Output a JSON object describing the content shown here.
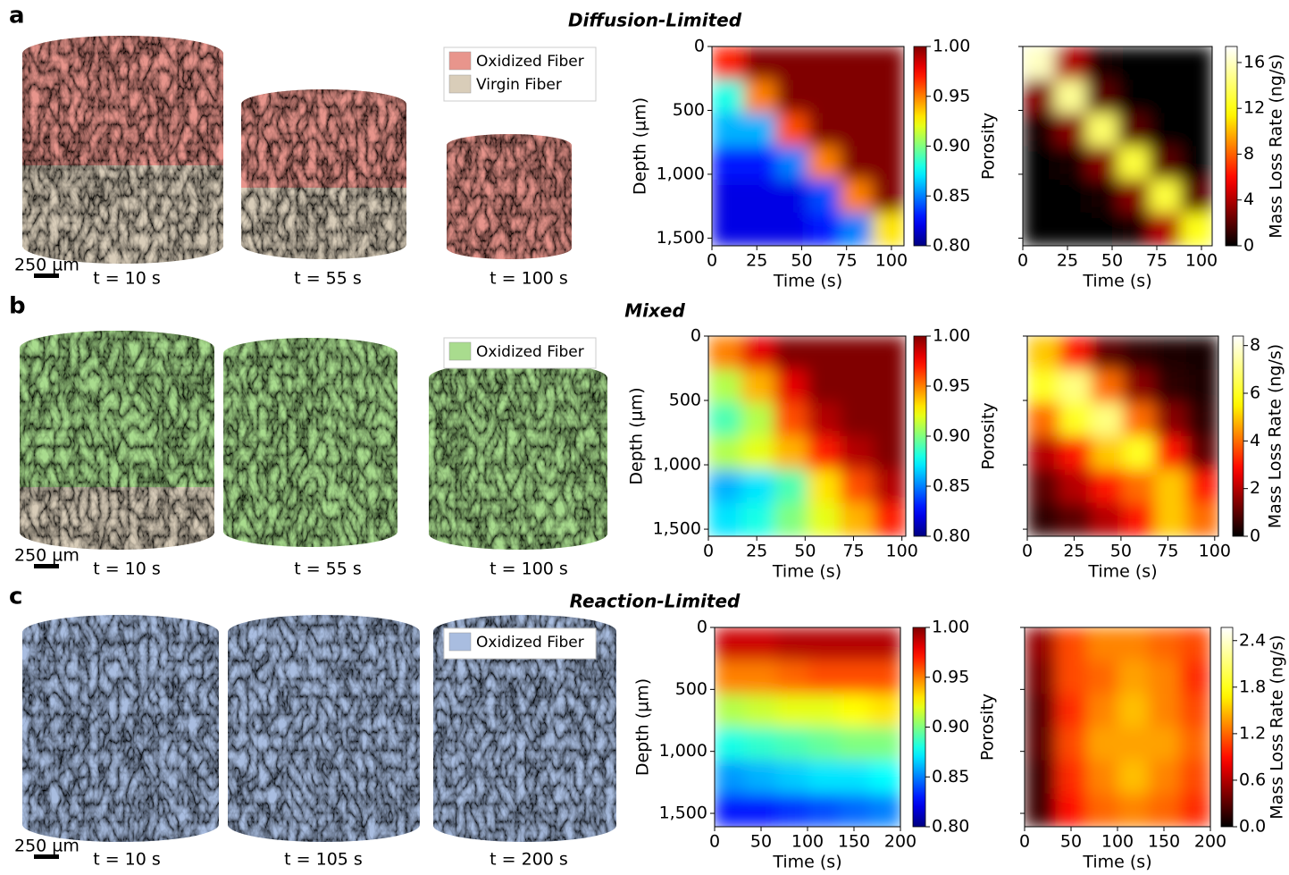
{
  "panels": [
    {
      "letter": "a",
      "title": "Diffusion-Limited",
      "scale_bar": "250 µm",
      "snapshots": [
        "t = 10 s",
        "t = 55 s",
        "t = 100 s"
      ],
      "legend": [
        {
          "name": "Oxidized Fiber",
          "color": "#e8958c"
        },
        {
          "name": "Virgin Fiber",
          "color": "#d9cdb9"
        }
      ],
      "charts": [
        {
          "type": "heatmap",
          "xlabel": "Time (s)",
          "ylabel": "Depth (µm)",
          "xlim": [
            0,
            107
          ],
          "ylim": [
            0,
            1560
          ],
          "xticks": [
            0,
            25,
            50,
            75,
            100
          ],
          "yticks": [
            0,
            500,
            {
              "value": 1000,
              "label": "1,000"
            },
            {
              "value": 1500,
              "label": "1,500"
            }
          ],
          "show_ytick_labels": true,
          "colorbar": {
            "label": "Porosity",
            "colormap": "jet",
            "lim": [
              0.8,
              1.0
            ],
            "ticks": [
              {
                "value": 0.8,
                "label": "0.80"
              },
              0.85,
              {
                "value": 0.9,
                "label": "0.90"
              },
              0.95,
              {
                "value": 1.0,
                "label": "1.00"
              }
            ]
          },
          "z": [
            [
              0.97,
              1,
              1,
              1,
              1,
              1
            ],
            [
              0.88,
              0.95,
              1,
              1,
              1,
              1
            ],
            [
              0.86,
              0.86,
              0.96,
              1,
              1,
              1
            ],
            [
              0.83,
              0.83,
              0.85,
              0.95,
              1,
              1
            ],
            [
              0.82,
              0.82,
              0.82,
              0.84,
              0.95,
              1
            ],
            [
              0.82,
              0.82,
              0.82,
              0.83,
              0.85,
              0.93
            ]
          ]
        },
        {
          "type": "heatmap",
          "xlabel": "Time (s)",
          "xlim": [
            0,
            106
          ],
          "ylim": [
            0,
            1560
          ],
          "xticks": [
            0,
            25,
            50,
            75,
            100
          ],
          "yticks": [
            0,
            500,
            1000,
            1500
          ],
          "show_ytick_labels": false,
          "colorbar": {
            "label": "Mass Loss Rate (ng/s)",
            "colormap": "hot",
            "lim": [
              0,
              17.4
            ],
            "ticks": [
              0,
              4,
              8,
              12,
              16
            ]
          },
          "z": [
            [
              16,
              4,
              0.5,
              0,
              0,
              0
            ],
            [
              3,
              15,
              2,
              0,
              0,
              0
            ],
            [
              0.5,
              3,
              14,
              2,
              0,
              0
            ],
            [
              0,
              0.5,
              3,
              13,
              2,
              0
            ],
            [
              0,
              0,
              0.5,
              3,
              13,
              2
            ],
            [
              0,
              0,
              0,
              0.5,
              4,
              12
            ]
          ]
        }
      ]
    },
    {
      "letter": "b",
      "title": "Mixed",
      "scale_bar": "250 µm",
      "snapshots": [
        "t = 10 s",
        "t = 55 s",
        "t = 100 s"
      ],
      "legend": [
        {
          "name": "Oxidized Fiber",
          "color": "#a9dc8e"
        }
      ],
      "charts": [
        {
          "type": "heatmap",
          "xlabel": "Time (s)",
          "ylabel": "Depth (µm)",
          "xlim": [
            0,
            102
          ],
          "ylim": [
            0,
            1555
          ],
          "xticks": [
            0,
            25,
            50,
            75,
            100
          ],
          "yticks": [
            0,
            500,
            {
              "value": 1000,
              "label": "1,000"
            },
            {
              "value": 1500,
              "label": "1,500"
            }
          ],
          "show_ytick_labels": true,
          "colorbar": {
            "label": "Porosity",
            "colormap": "jet",
            "lim": [
              0.8,
              1.0
            ],
            "ticks": [
              {
                "value": 0.8,
                "label": "0.80"
              },
              0.85,
              {
                "value": 0.9,
                "label": "0.90"
              },
              0.95,
              {
                "value": 1.0,
                "label": "1.00"
              }
            ]
          },
          "z": [
            [
              0.95,
              0.98,
              1,
              1,
              1,
              1
            ],
            [
              0.91,
              0.94,
              0.98,
              1,
              1,
              1
            ],
            [
              0.89,
              0.91,
              0.96,
              0.99,
              1,
              1
            ],
            [
              0.91,
              0.92,
              0.94,
              0.97,
              0.99,
              1
            ],
            [
              0.86,
              0.87,
              0.89,
              0.93,
              0.96,
              0.99
            ],
            [
              0.87,
              0.88,
              0.9,
              0.92,
              0.94,
              0.97
            ]
          ]
        },
        {
          "type": "heatmap",
          "xlabel": "Time (s)",
          "xlim": [
            0,
            102
          ],
          "ylim": [
            0,
            1555
          ],
          "xticks": [
            0,
            25,
            50,
            75,
            100
          ],
          "yticks": [
            0,
            500,
            1000,
            1500
          ],
          "show_ytick_labels": false,
          "colorbar": {
            "label": "Mass Loss Rate (ng/s)",
            "colormap": "hot",
            "lim": [
              0,
              8.4
            ],
            "ticks": [
              0,
              2,
              4,
              6,
              8
            ]
          },
          "z": [
            [
              5,
              3,
              1,
              0.5,
              0.3,
              0.2
            ],
            [
              6,
              7,
              4,
              1.5,
              0.5,
              0.3
            ],
            [
              4,
              6,
              7,
              4,
              1.5,
              0.5
            ],
            [
              2,
              3,
              5,
              6,
              3,
              1
            ],
            [
              1,
              2,
              3,
              4,
              5,
              3
            ],
            [
              0.5,
              1,
              2,
              3,
              5,
              4
            ]
          ]
        }
      ]
    },
    {
      "letter": "c",
      "title": "Reaction-Limited",
      "scale_bar": "250 µm",
      "snapshots": [
        "t = 10 s",
        "t = 105 s",
        "t = 200 s"
      ],
      "legend": [
        {
          "name": "Oxidized Fiber",
          "color": "#a9bde0"
        }
      ],
      "charts": [
        {
          "type": "heatmap",
          "xlabel": "Time (s)",
          "ylabel": "Depth (µm)",
          "xlim": [
            0,
            200
          ],
          "ylim": [
            0,
            1608
          ],
          "xticks": [
            0,
            50,
            100,
            150,
            200
          ],
          "yticks": [
            0,
            500,
            {
              "value": 1000,
              "label": "1,000"
            },
            {
              "value": 1500,
              "label": "1,500"
            }
          ],
          "show_ytick_labels": true,
          "colorbar": {
            "label": "Porosity",
            "colormap": "jet",
            "lim": [
              0.8,
              1.0
            ],
            "ticks": [
              {
                "value": 0.8,
                "label": "0.80"
              },
              0.85,
              {
                "value": 0.9,
                "label": "0.90"
              },
              0.95,
              {
                "value": 1.0,
                "label": "1.00"
              }
            ]
          },
          "z": [
            [
              0.985,
              0.985,
              0.99,
              0.99,
              0.99,
              0.99
            ],
            [
              0.95,
              0.95,
              0.955,
              0.96,
              0.96,
              0.96
            ],
            [
              0.91,
              0.915,
              0.92,
              0.92,
              0.925,
              0.93
            ],
            [
              0.88,
              0.885,
              0.89,
              0.895,
              0.9,
              0.9
            ],
            [
              0.855,
              0.86,
              0.865,
              0.87,
              0.87,
              0.875
            ],
            [
              0.83,
              0.83,
              0.835,
              0.84,
              0.845,
              0.85
            ]
          ]
        },
        {
          "type": "heatmap",
          "xlabel": "Time (s)",
          "xlim": [
            0,
            200
          ],
          "ylim": [
            0,
            1608
          ],
          "xticks": [
            0,
            50,
            100,
            150,
            200
          ],
          "yticks": [
            0,
            500,
            1000,
            1500
          ],
          "show_ytick_labels": false,
          "colorbar": {
            "label": "Mass Loss Rate (ng/s)",
            "colormap": "hot",
            "lim": [
              0,
              2.57
            ],
            "ticks": [
              {
                "value": 0,
                "label": "0.0"
              },
              0.6,
              1.2,
              1.8,
              2.4
            ]
          },
          "z": [
            [
              0.5,
              1.1,
              1.3,
              1.3,
              1.2,
              1.1
            ],
            [
              0.4,
              1.1,
              1.2,
              1.4,
              1.3,
              1.0
            ],
            [
              0.3,
              1.0,
              1.3,
              1.5,
              1.3,
              1.1
            ],
            [
              0.3,
              1.1,
              1.4,
              1.4,
              1.4,
              1.2
            ],
            [
              0.2,
              1.0,
              1.3,
              1.5,
              1.3,
              1.1
            ],
            [
              0.2,
              0.9,
              1.2,
              1.3,
              1.2,
              1.0
            ]
          ]
        }
      ]
    }
  ]
}
